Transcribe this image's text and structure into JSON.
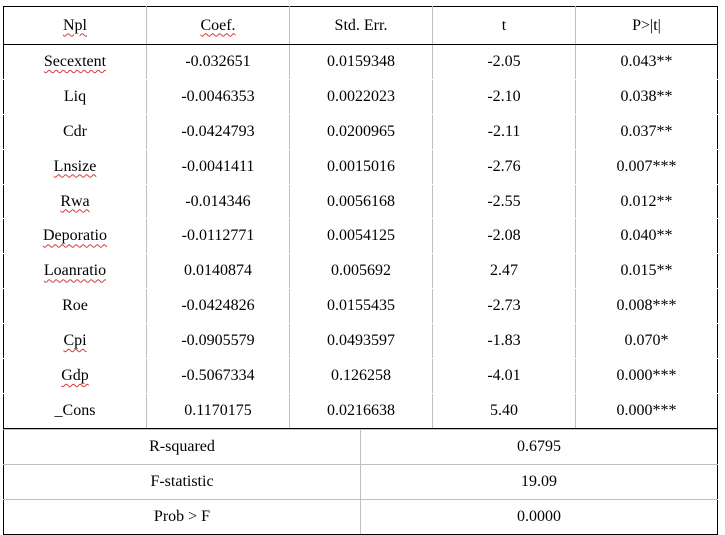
{
  "headers": [
    "Npl",
    "Coef.",
    "Std. Err.",
    "t",
    "P>|t|"
  ],
  "rows": [
    {
      "var": "Secextent",
      "coef": "-0.032651",
      "se": "0.0159348",
      "t": "-2.05",
      "p": "0.043**"
    },
    {
      "var": "Liq",
      "coef": "-0.0046353",
      "se": "0.0022023",
      "t": "-2.10",
      "p": "0.038**"
    },
    {
      "var": "Cdr",
      "coef": "-0.0424793",
      "se": "0.0200965",
      "t": "-2.11",
      "p": "0.037**"
    },
    {
      "var": "Lnsize",
      "coef": "-0.0041411",
      "se": "0.0015016",
      "t": "-2.76",
      "p": "0.007***"
    },
    {
      "var": "Rwa",
      "coef": "-0.014346",
      "se": "0.0056168",
      "t": "-2.55",
      "p": "0.012**"
    },
    {
      "var": "Deporatio",
      "coef": "-0.0112771",
      "se": "0.0054125",
      "t": "-2.08",
      "p": "0.040**"
    },
    {
      "var": "Loanratio",
      "coef": "0.0140874",
      "se": "0.005692",
      "t": "2.47",
      "p": "0.015**"
    },
    {
      "var": "Roe",
      "coef": "-0.0424826",
      "se": "0.0155435",
      "t": "-2.73",
      "p": "0.008***"
    },
    {
      "var": "Cpi",
      "coef": "-0.0905579",
      "se": "0.0493597",
      "t": "-1.83",
      "p": "0.070*"
    },
    {
      "var": "Gdp",
      "coef": "-0.5067334",
      "se": "0.126258",
      "t": "-4.01",
      "p": "0.000***"
    },
    {
      "var": "_Cons",
      "coef": "0.1170175",
      "se": "0.0216638",
      "t": "5.40",
      "p": "0.000***"
    }
  ],
  "stats": [
    {
      "label": "R-squared",
      "value": "0.6795"
    },
    {
      "label": "F-statistic",
      "value": "19.09"
    },
    {
      "label": "Prob > F",
      "value": "0.0000"
    }
  ]
}
